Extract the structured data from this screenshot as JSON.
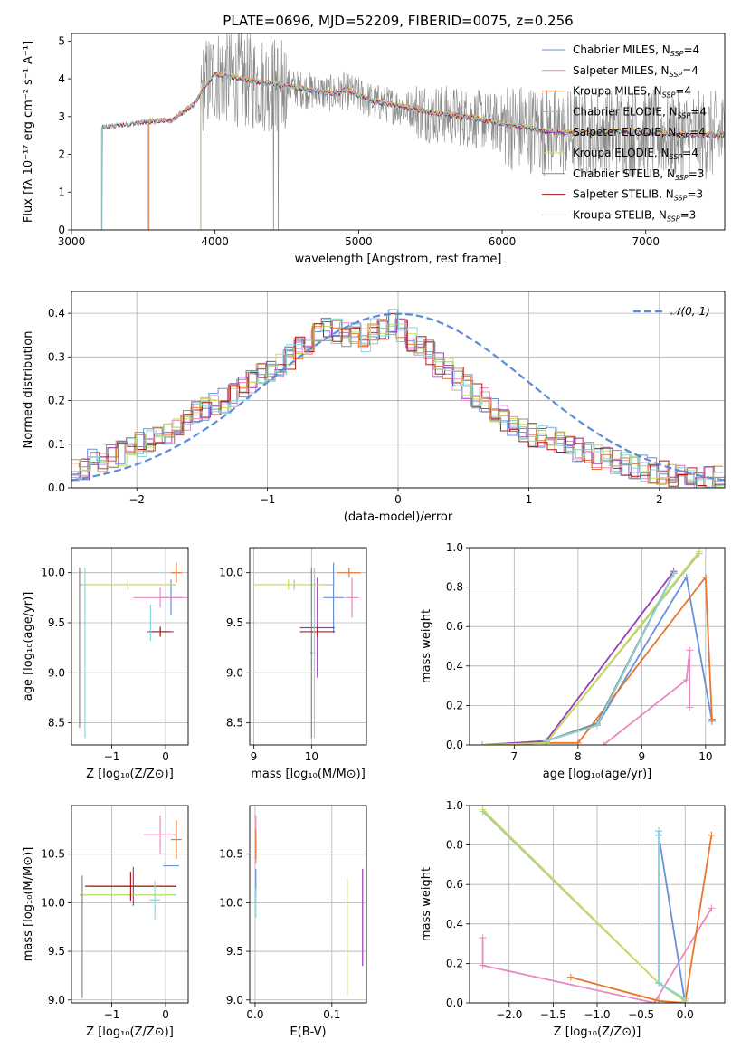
{
  "colors": {
    "Chabrier MILES": "#6a90d9",
    "Salpeter MILES": "#e98ac3",
    "Kroupa MILES": "#e8772e",
    "Chabrier ELODIE": "#9fc59f",
    "Salpeter ELODIE": "#9a3db8",
    "Kroupa ELODIE": "#c8de59",
    "Chabrier STELIB": "#888888",
    "Salpeter STELIB": "#b01818",
    "Kroupa STELIB": "#86d9dd",
    "normal": "#5b8bd9",
    "grid": "#b0b0b0"
  },
  "chart_data": [
    {
      "id": "spectrum",
      "type": "line",
      "title": "PLATE=0696, MJD=52209, FIBERID=0075, z=0.256",
      "xlabel": "wavelength [Angstrom, rest frame]",
      "ylabel": "Flux [fλ 10⁻¹⁷ erg cm⁻² s⁻¹ A⁻¹]",
      "xlim": [
        3000,
        7550
      ],
      "ylim": [
        0,
        5.2
      ],
      "xticks": [
        3000,
        4000,
        5000,
        6000,
        7000
      ],
      "yticks": [
        0,
        1,
        2,
        3,
        4,
        5
      ],
      "grid": false,
      "legend_position": "top-right",
      "legend": [
        {
          "text": "Chabrier MILES, N",
          "sub": "SSP",
          "val": "=4",
          "color": "#6a90d9"
        },
        {
          "text": "Salpeter MILES, N",
          "sub": "SSP",
          "val": "=4",
          "color": "#e98ac3"
        },
        {
          "text": "Kroupa MILES, N",
          "sub": "SSP",
          "val": "=4",
          "color": "#e8772e"
        },
        {
          "text": "Chabrier ELODIE, N",
          "sub": "SSP",
          "val": "=4",
          "color": "#9fc59f"
        },
        {
          "text": "Salpeter ELODIE, N",
          "sub": "SSP",
          "val": "=4",
          "color": "#9a3db8"
        },
        {
          "text": "Kroupa ELODIE, N",
          "sub": "SSP",
          "val": "=4",
          "color": "#c8de59"
        },
        {
          "text": "Chabrier STELIB, N",
          "sub": "SSP",
          "val": "=3",
          "color": "#888888"
        },
        {
          "text": "Salpeter STELIB, N",
          "sub": "SSP",
          "val": "=3",
          "color": "#b01818"
        },
        {
          "text": "Kroupa STELIB, N",
          "sub": "SSP",
          "val": "=3",
          "color": "#86d9dd"
        }
      ],
      "model_continuum": {
        "x": [
          3200,
          3500,
          3700,
          3850,
          3950,
          4000,
          4100,
          4300,
          4500,
          4700,
          4860,
          4900,
          5100,
          5300,
          5500,
          5800,
          6000,
          6300,
          6500,
          6800,
          7100,
          7300
        ],
        "y": [
          2.7,
          2.85,
          2.9,
          3.3,
          3.9,
          4.1,
          4.05,
          3.9,
          3.8,
          3.65,
          3.6,
          3.7,
          3.4,
          3.25,
          3.1,
          2.95,
          2.8,
          2.6,
          2.55,
          2.6,
          2.55,
          2.5
        ]
      },
      "data_range_x": [
        3210,
        7550
      ]
    },
    {
      "id": "residuals",
      "type": "histogram",
      "xlabel": "(data-model)/error",
      "ylabel": "Normed distribution",
      "xlim": [
        -2.5,
        2.5
      ],
      "ylim": [
        0,
        0.45
      ],
      "xticks": [
        -2,
        -1,
        0,
        1,
        2
      ],
      "yticks": [
        0.0,
        0.1,
        0.2,
        0.3,
        0.4
      ],
      "grid": true,
      "legend_position": "top-right",
      "legend": [
        {
          "text": "𝒩(0, 1)",
          "style": "dashed",
          "color": "#5b8bd9"
        }
      ],
      "bin_width": 0.1,
      "bin_start": -2.5,
      "base_values": [
        0.04,
        0.045,
        0.06,
        0.065,
        0.07,
        0.08,
        0.09,
        0.1,
        0.11,
        0.12,
        0.13,
        0.14,
        0.16,
        0.17,
        0.18,
        0.19,
        0.2,
        0.21,
        0.23,
        0.24,
        0.26,
        0.27,
        0.28,
        0.3,
        0.32,
        0.33,
        0.35,
        0.36,
        0.36,
        0.35,
        0.35,
        0.34,
        0.36,
        0.37,
        0.38,
        0.36,
        0.34,
        0.32,
        0.31,
        0.28,
        0.27,
        0.25,
        0.23,
        0.21,
        0.2,
        0.18,
        0.16,
        0.15,
        0.13,
        0.12,
        0.12,
        0.11,
        0.1,
        0.09,
        0.09,
        0.08,
        0.07,
        0.065,
        0.06,
        0.055,
        0.05,
        0.045,
        0.04,
        0.035,
        0.03,
        0.03,
        0.025,
        0.02,
        0.02,
        0.02
      ]
    },
    {
      "id": "age-vs-Z",
      "type": "errorbar",
      "xlabel": "Z [log₁₀(Z/Z⊙)]",
      "ylabel": "age  [log₁₀(age/yr)]",
      "xlim": [
        -1.75,
        0.42
      ],
      "ylim": [
        8.28,
        10.25
      ],
      "xticks": [
        -1,
        0
      ],
      "yticks": [
        8.5,
        9.0,
        9.5,
        10.0
      ],
      "grid": true,
      "points": [
        {
          "series": "Chabrier MILES",
          "x": 0.1,
          "y": 9.75,
          "xerr": 0.2,
          "yerr": 0.18
        },
        {
          "series": "Salpeter MILES",
          "x": -0.1,
          "y": 9.75,
          "xerr": 0.5,
          "yerr": 0.1
        },
        {
          "series": "Kroupa MILES",
          "x": 0.2,
          "y": 10.0,
          "xerr": 0.1,
          "yerr": 0.1
        },
        {
          "series": "Chabrier ELODIE",
          "x": -0.7,
          "y": 9.88,
          "xerr": 0.9,
          "yerr": 0.05
        },
        {
          "series": "Salpeter ELODIE",
          "x": -0.1,
          "y": 9.41,
          "xerr": 0.25,
          "yerr": 0.05
        },
        {
          "series": "Kroupa ELODIE",
          "x": -0.7,
          "y": 9.88,
          "xerr": 0.85,
          "yerr": 0.05
        },
        {
          "series": "Chabrier STELIB",
          "x": -1.6,
          "y": 9.25,
          "xerr": 0.0,
          "yerr": 0.8
        },
        {
          "series": "Salpeter STELIB",
          "x": -0.1,
          "y": 9.41,
          "xerr": 0.2,
          "yerr": 0.05
        },
        {
          "series": "Kroupa STELIB",
          "x": -1.5,
          "y": 9.2,
          "xerr": 0.0,
          "yerr": 0.85
        },
        {
          "series": "Kroupa STELIB",
          "x": -0.28,
          "y": 9.5,
          "xerr": 0.0,
          "yerr": 0.18
        }
      ]
    },
    {
      "id": "age-vs-mass",
      "type": "errorbar",
      "xlabel": "mass [log₁₀(M/M⊙)]",
      "ylabel": "",
      "xlim": [
        8.93,
        10.95
      ],
      "ylim": [
        8.28,
        10.25
      ],
      "xticks": [
        9,
        10
      ],
      "yticks": [
        8.5,
        9.0,
        9.5,
        10.0
      ],
      "grid": true,
      "points": [
        {
          "series": "Chabrier MILES",
          "x": 10.38,
          "y": 9.75,
          "xerr": 0.18,
          "yerr": 0.35
        },
        {
          "series": "Salpeter MILES",
          "x": 10.7,
          "y": 9.75,
          "xerr": 0.12,
          "yerr": 0.2
        },
        {
          "series": "Kroupa MILES",
          "x": 10.65,
          "y": 10.0,
          "xerr": 0.2,
          "yerr": 0.05
        },
        {
          "series": "Chabrier ELODIE",
          "x": 9.7,
          "y": 9.88,
          "xerr": 0.7,
          "yerr": 0.05
        },
        {
          "series": "Salpeter ELODIE",
          "x": 10.1,
          "y": 9.45,
          "xerr": 0.3,
          "yerr": 0.5
        },
        {
          "series": "Kroupa ELODIE",
          "x": 9.6,
          "y": 9.88,
          "xerr": 0.6,
          "yerr": 0.05
        },
        {
          "series": "Chabrier STELIB",
          "x": 10.0,
          "y": 9.2,
          "xerr": 0.02,
          "yerr": 0.85
        },
        {
          "series": "Salpeter STELIB",
          "x": 10.1,
          "y": 9.41,
          "xerr": 0.3,
          "yerr": 0.05
        },
        {
          "series": "Kroupa STELIB",
          "x": 10.05,
          "y": 9.2,
          "xerr": 0.02,
          "yerr": 0.85
        }
      ]
    },
    {
      "id": "weight-vs-age",
      "type": "line",
      "xlabel": "age  [log₁₀(age/yr)]",
      "ylabel": "mass weight",
      "xlim": [
        6.3,
        10.3
      ],
      "ylim": [
        0,
        1.0
      ],
      "xticks": [
        7,
        8,
        9,
        10
      ],
      "yticks": [
        0.0,
        0.2,
        0.4,
        0.6,
        0.8,
        1.0
      ],
      "grid": true,
      "series": [
        {
          "name": "Chabrier MILES",
          "x": [
            6.5,
            7.5,
            8.3,
            9.7,
            10.1
          ],
          "y": [
            0.0,
            0.02,
            0.1,
            0.85,
            0.12
          ]
        },
        {
          "name": "Salpeter MILES",
          "x": [
            8.4,
            9.7,
            9.75,
            9.75
          ],
          "y": [
            0.0,
            0.33,
            0.48,
            0.19
          ]
        },
        {
          "name": "Kroupa MILES",
          "x": [
            6.5,
            7.5,
            8.0,
            10.0,
            10.1
          ],
          "y": [
            0.0,
            0.01,
            0.01,
            0.85,
            0.13
          ]
        },
        {
          "name": "Chabrier ELODIE",
          "x": [
            6.5,
            7.5,
            9.9
          ],
          "y": [
            0.0,
            0.01,
            0.97
          ]
        },
        {
          "name": "Salpeter ELODIE",
          "x": [
            6.5,
            7.5,
            9.5
          ],
          "y": [
            0.0,
            0.02,
            0.88
          ]
        },
        {
          "name": "Kroupa ELODIE",
          "x": [
            6.5,
            7.5,
            9.9
          ],
          "y": [
            0.0,
            0.01,
            0.98
          ]
        },
        {
          "name": "Chabrier STELIB",
          "x": [
            7.5,
            8.3,
            9.5
          ],
          "y": [
            0.02,
            0.11,
            0.87
          ]
        },
        {
          "name": "Salpeter STELIB",
          "x": [
            7.5,
            8.3,
            9.5
          ],
          "y": [
            0.02,
            0.1,
            0.87
          ]
        },
        {
          "name": "Kroupa STELIB",
          "x": [
            7.5,
            8.3,
            9.5
          ],
          "y": [
            0.02,
            0.1,
            0.87
          ]
        }
      ]
    },
    {
      "id": "mass-vs-Z",
      "type": "errorbar",
      "xlabel": "Z [log₁₀(Z/Z⊙)]",
      "ylabel": "mass [log₁₀(M/M⊙)]",
      "xlim": [
        -1.75,
        0.42
      ],
      "ylim": [
        8.97,
        11.0
      ],
      "xticks": [
        -1,
        0
      ],
      "yticks": [
        9.0,
        9.5,
        10.0,
        10.5
      ],
      "grid": true,
      "points": [
        {
          "series": "Chabrier MILES",
          "x": 0.1,
          "y": 10.38,
          "xerr": 0.15,
          "yerr": 0.0
        },
        {
          "series": "Salpeter MILES",
          "x": -0.1,
          "y": 10.7,
          "xerr": 0.3,
          "yerr": 0.2
        },
        {
          "series": "Kroupa MILES",
          "x": 0.2,
          "y": 10.65,
          "xerr": 0.1,
          "yerr": 0.2
        },
        {
          "series": "Chabrier ELODIE",
          "x": -0.7,
          "y": 10.08,
          "xerr": 0.9,
          "yerr": 0.0
        },
        {
          "series": "Salpeter ELODIE",
          "x": -0.6,
          "y": 10.17,
          "xerr": 0.8,
          "yerr": 0.2
        },
        {
          "series": "Kroupa ELODIE",
          "x": -0.7,
          "y": 10.08,
          "xerr": 0.85,
          "yerr": 0.0
        },
        {
          "series": "Chabrier STELIB",
          "x": -1.55,
          "y": 9.65,
          "xerr": 0.0,
          "yerr": 0.63
        },
        {
          "series": "Salpeter STELIB",
          "x": -0.65,
          "y": 10.17,
          "xerr": 0.85,
          "yerr": 0.15
        },
        {
          "series": "Kroupa STELIB",
          "x": -0.2,
          "y": 10.03,
          "xerr": 0.1,
          "yerr": 0.2
        }
      ]
    },
    {
      "id": "mass-vs-EBV",
      "type": "errorbar",
      "xlabel": "E(B-V)",
      "ylabel": "",
      "xlim": [
        -0.007,
        0.145
      ],
      "ylim": [
        8.97,
        11.0
      ],
      "xticks": [
        0.0,
        0.1
      ],
      "yticks": [
        9.0,
        9.5,
        10.0,
        10.5
      ],
      "grid": true,
      "points": [
        {
          "series": "Chabrier MILES",
          "x": 0.001,
          "y": 10.2,
          "xerr": 0.0,
          "yerr": 0.15
        },
        {
          "series": "Salpeter MILES",
          "x": 0.001,
          "y": 10.65,
          "xerr": 0.0,
          "yerr": 0.25
        },
        {
          "series": "Kroupa MILES",
          "x": 0.001,
          "y": 10.6,
          "xerr": 0.0,
          "yerr": 0.15
        },
        {
          "series": "Kroupa ELODIE",
          "x": 0.12,
          "y": 9.65,
          "xerr": 0.0,
          "yerr": 0.6
        },
        {
          "series": "Salpeter ELODIE",
          "x": 0.14,
          "y": 9.85,
          "xerr": 0.0,
          "yerr": 0.5
        },
        {
          "series": "Kroupa STELIB",
          "x": 0.001,
          "y": 10.0,
          "xerr": 0.0,
          "yerr": 0.15
        }
      ]
    },
    {
      "id": "weight-vs-Z",
      "type": "line",
      "xlabel": "Z [log₁₀(Z/Z⊙)]",
      "ylabel": "mass weight",
      "xlim": [
        -2.45,
        0.45
      ],
      "ylim": [
        0,
        1.0
      ],
      "xticks": [
        -2.0,
        -1.5,
        -1.0,
        -0.5,
        0.0
      ],
      "yticks": [
        0.0,
        0.2,
        0.4,
        0.6,
        0.8,
        1.0
      ],
      "grid": true,
      "series": [
        {
          "name": "Salpeter MILES",
          "x": [
            -2.3,
            -2.3,
            -2.3,
            -0.35,
            0.3
          ],
          "y": [
            0.33,
            0.19,
            0.19,
            0.0,
            0.48
          ]
        },
        {
          "name": "Kroupa MILES",
          "x": [
            -1.3,
            -0.3,
            0.0,
            0.3
          ],
          "y": [
            0.13,
            0.01,
            0.0,
            0.85
          ]
        },
        {
          "name": "Chabrier MILES",
          "x": [
            -0.3,
            0.0
          ],
          "y": [
            0.85,
            0.0
          ]
        },
        {
          "name": "Chabrier ELODIE",
          "x": [
            -2.3,
            -0.3,
            0.0
          ],
          "y": [
            0.97,
            0.1,
            0.01
          ]
        },
        {
          "name": "Kroupa ELODIE",
          "x": [
            -2.3,
            -0.3,
            0.0
          ],
          "y": [
            0.98,
            0.1,
            0.01
          ]
        },
        {
          "name": "Chabrier STELIB",
          "x": [
            -0.3,
            -0.3,
            0.0
          ],
          "y": [
            0.87,
            0.1,
            0.02
          ]
        },
        {
          "name": "Kroupa STELIB",
          "x": [
            -0.3,
            -0.3,
            0.0
          ],
          "y": [
            0.87,
            0.1,
            0.02
          ]
        }
      ]
    }
  ]
}
